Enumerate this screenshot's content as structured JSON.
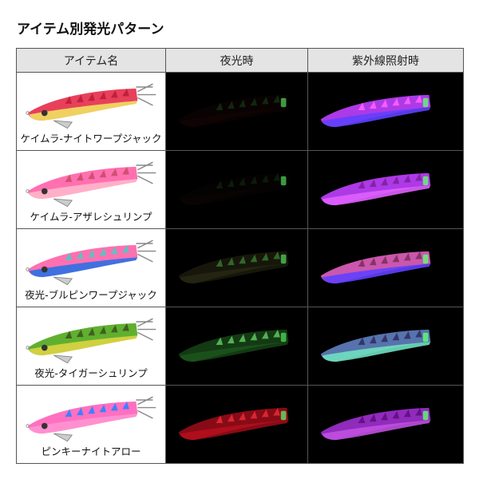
{
  "title": "アイテム別発光パターン",
  "columns": [
    "アイテム名",
    "夜光時",
    "紫外線照射時"
  ],
  "items": [
    {
      "name": "ケイムラ-ナイトワープジャック",
      "body": "#e8405a",
      "belly": "#f0d060",
      "stripe": "#c02040",
      "night": {
        "body": "#3a1010",
        "glow": "#40ff60",
        "opacity": 0.15
      },
      "uv": {
        "body": "#c040ff",
        "belly": "#6040ff",
        "stripe": "#ff60ff"
      }
    },
    {
      "name": "ケイムラ-アザレシュリンプ",
      "body": "#ff70b0",
      "belly": "#ffb0c8",
      "stripe": "#d05070",
      "night": {
        "body": "#301010",
        "glow": "#40ff60",
        "opacity": 0.1
      },
      "uv": {
        "body": "#c040ff",
        "belly": "#e060ff",
        "stripe": "#8020a0"
      }
    },
    {
      "name": "夜光-ブルピンワープジャック",
      "body": "#ff70b0",
      "belly": "#4070e0",
      "stripe": "#60c0c0",
      "night": {
        "body": "#404020",
        "glow": "#60ff60",
        "opacity": 0.35
      },
      "uv": {
        "body": "#e060c0",
        "belly": "#6040ff",
        "stripe": "#803060"
      }
    },
    {
      "name": "夜光-タイガーシュリンプ",
      "body": "#60b030",
      "belly": "#d0d040",
      "stripe": "#406020",
      "night": {
        "body": "#206020",
        "glow": "#80ff80",
        "opacity": 0.6
      },
      "uv": {
        "body": "#6080c0",
        "belly": "#70e0c0",
        "stripe": "#303060"
      }
    },
    {
      "name": "ピンキーナイトアロー",
      "body": "#ff70c0",
      "belly": "#ff90d0",
      "stripe": "#4080ff",
      "night": {
        "body": "#c01020",
        "glow": "#ff3040",
        "opacity": 0.7
      },
      "uv": {
        "body": "#a030d0",
        "belly": "#c050e0",
        "stripe": "#601080"
      }
    }
  ]
}
